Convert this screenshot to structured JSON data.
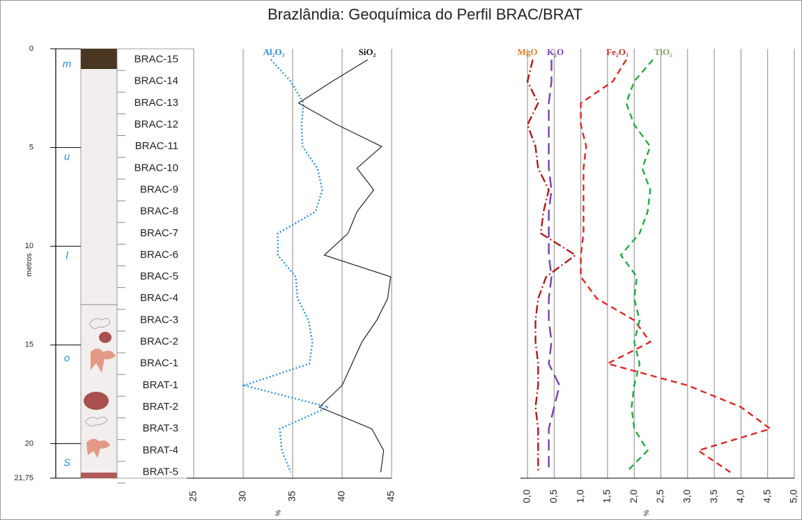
{
  "chart_data": {
    "type": "line",
    "title": "Brazlândia: Geoquímica do Perfil BRAC/BRAT",
    "y_label": "metros",
    "ylim": [
      0,
      21.75
    ],
    "yticks": [
      0,
      5,
      10,
      15,
      20,
      {
        "value": 21.75,
        "label": "21,75"
      }
    ],
    "samples": [
      "BRAC-15",
      "BRAC-14",
      "BRAC-13",
      "BRAC-12",
      "BRAC-11",
      "BRAC-10",
      "BRAC-9",
      "BRAC-8",
      "BRAC-7",
      "BRAC-6",
      "BRAC-5",
      "BRAC-4",
      "BRAC-3",
      "BRAC-2",
      "BRAC-1",
      "BRAT-1",
      "BRAT-2",
      "BRAT-3",
      "BRAT-4",
      "BRAT-5"
    ],
    "depths": [
      0.55,
      1.65,
      2.75,
      3.85,
      4.95,
      6.05,
      7.15,
      8.25,
      9.35,
      10.45,
      11.55,
      12.65,
      13.75,
      14.85,
      15.95,
      17.05,
      18.15,
      19.25,
      20.35,
      21.45
    ],
    "units": [
      "m",
      "u",
      "l",
      "o",
      "S"
    ],
    "grid": true,
    "panels": [
      {
        "xlim": [
          25,
          45
        ],
        "xticks": [
          25,
          30,
          35,
          40,
          45
        ],
        "x_label": "%",
        "series": [
          {
            "name": "Al₂O₃",
            "color": "#2a8fd4",
            "label_color": "#2a8ad0",
            "style": "dotted",
            "values": [
              32.8,
              34.8,
              36.1,
              35.9,
              36,
              37.5,
              38,
              37.3,
              33.5,
              33.5,
              35.3,
              35.5,
              36.6,
              37,
              36.7,
              30.1,
              38.6,
              33.7,
              33.9,
              34.8
            ]
          },
          {
            "name": "SiO₂",
            "color": "#222222",
            "label_color": "#111111",
            "style": "solid",
            "values": [
              42.6,
              39,
              35.6,
              39.5,
              44,
              41.5,
              43.2,
              41.5,
              40.6,
              38.2,
              44.9,
              44.6,
              43.5,
              42,
              41,
              40,
              37.7,
              43,
              44.2,
              43.9
            ]
          }
        ]
      },
      {
        "xlim": [
          0,
          5
        ],
        "xticks": [
          {
            "value": 0,
            "label": "0,0"
          },
          {
            "value": 0.5,
            "label": "0,5"
          },
          {
            "value": 1,
            "label": "1,0"
          },
          {
            "value": 1.5,
            "label": "1,5"
          },
          {
            "value": 2,
            "label": "2,0"
          },
          {
            "value": 2.5,
            "label": "2,5"
          },
          {
            "value": 3,
            "label": "3,0"
          },
          {
            "value": 3.5,
            "label": "3,5"
          },
          {
            "value": 4,
            "label": "4,0"
          },
          {
            "value": 4.5,
            "label": "4,5"
          },
          {
            "value": 5,
            "label": "5,0"
          }
        ],
        "x_label": "%",
        "series": [
          {
            "name": "MgO",
            "color": "#b01818",
            "label_color": "#d9822b",
            "style": "dashdot",
            "values": [
              0.1,
              0.0,
              0.2,
              0.0,
              0.15,
              0.2,
              0.4,
              0.3,
              0.25,
              0.9,
              0.35,
              0.2,
              0.15,
              0.15,
              0.2,
              0.2,
              0.15,
              0.2,
              0.2,
              0.2
            ]
          },
          {
            "name": "K₂O",
            "color": "#7b3fa8",
            "label_color": "#7b3fa8",
            "style": "longdash",
            "values": [
              0.45,
              0.45,
              0.4,
              0.4,
              0.4,
              0.4,
              0.45,
              0.4,
              0.4,
              0.4,
              0.45,
              0.4,
              0.4,
              0.45,
              0.4,
              0.6,
              0.5,
              0.4,
              0.4,
              0.4
            ]
          },
          {
            "name": "Fe₂O₃",
            "color": "#e02424",
            "label_color": "#c0302b",
            "style": "dashed",
            "values": [
              1.85,
              1.6,
              1.0,
              1.0,
              1.1,
              1.05,
              1.05,
              1.05,
              1.05,
              1.0,
              1.0,
              1.3,
              2.0,
              2.3,
              1.5,
              3.0,
              4.0,
              4.55,
              3.2,
              3.8
            ]
          },
          {
            "name": "TiO₂",
            "color": "#22aa44",
            "label_color": "#8aa060",
            "style": "dashed",
            "values": [
              2.35,
              2.0,
              1.85,
              2.0,
              2.3,
              2.15,
              2.3,
              2.25,
              2.1,
              1.75,
              2.05,
              2.0,
              2.1,
              2.0,
              2.1,
              2.0,
              1.95,
              2.0,
              2.25,
              1.85
            ]
          }
        ]
      }
    ]
  }
}
